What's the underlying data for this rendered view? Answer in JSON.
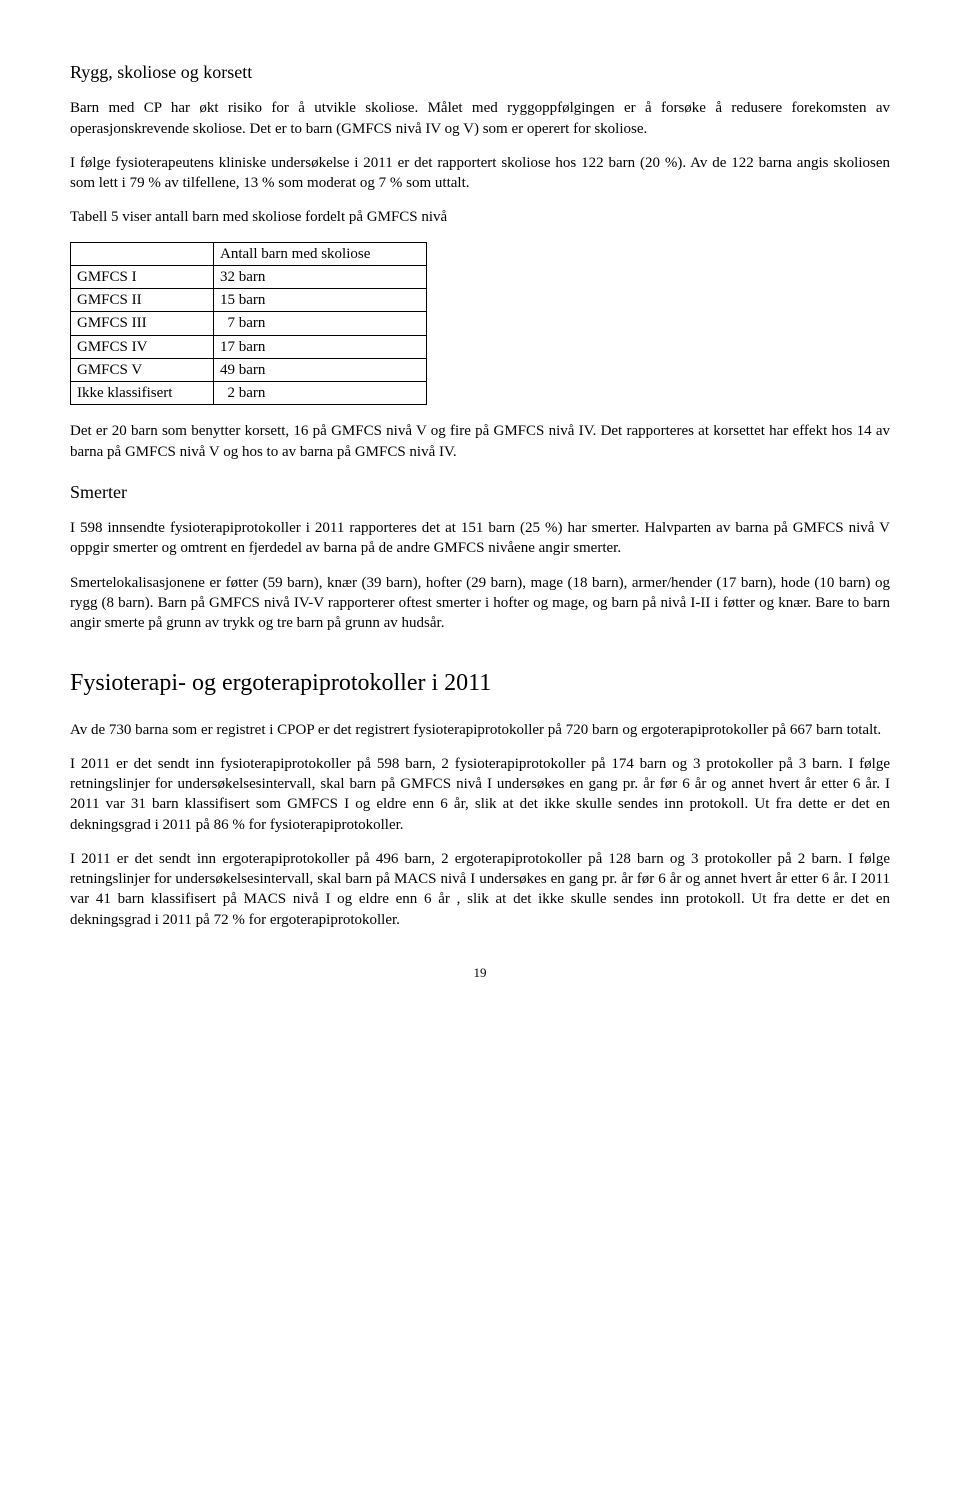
{
  "section1": {
    "heading": "Rygg, skoliose og korsett",
    "para1": "Barn med CP har økt risiko for å utvikle skoliose. Målet med ryggoppfølgingen er å forsøke å redusere forekomsten av operasjonskrevende skoliose. Det er to barn (GMFCS nivå IV og V) som er operert for skoliose.",
    "para2": "I følge fysioterapeutens kliniske undersøkelse i 2011 er det rapportert skoliose hos 122 barn (20 %). Av de 122 barna angis skoliosen som lett i 79 % av tilfellene, 13 % som moderat og 7 % som uttalt.",
    "tableCaption": "Tabell 5 viser antall barn med skoliose fordelt på GMFCS nivå",
    "table": {
      "header": [
        "",
        "Antall barn med skoliose"
      ],
      "rows": [
        [
          "GMFCS I",
          "32 barn"
        ],
        [
          "GMFCS II",
          "15 barn"
        ],
        [
          "GMFCS III",
          "  7 barn"
        ],
        [
          "GMFCS IV",
          "17 barn"
        ],
        [
          "GMFCS V",
          "49 barn"
        ],
        [
          "Ikke klassifisert",
          "  2 barn"
        ]
      ]
    },
    "para3": "Det er 20 barn som benytter korsett, 16 på GMFCS nivå V og fire på GMFCS nivå IV. Det rapporteres at korsettet har effekt hos 14 av barna på GMFCS nivå V og hos to av barna på GMFCS nivå IV."
  },
  "section2": {
    "heading": "Smerter",
    "para1": "I 598 innsendte fysioterapiprotokoller i 2011 rapporteres det at 151 barn (25 %) har smerter. Halvparten av barna på GMFCS nivå V oppgir smerter og omtrent en fjerdedel av barna på de andre GMFCS nivåene angir smerter.",
    "para2": "Smertelokalisasjonene er føtter (59 barn), knær (39 barn), hofter (29 barn), mage (18 barn), armer/hender (17 barn), hode (10 barn) og rygg (8 barn). Barn på GMFCS nivå IV-V rapporterer oftest smerter i hofter og mage, og barn på nivå I-II i føtter og knær. Bare to barn angir smerte på grunn av trykk og tre barn på grunn av hudsår."
  },
  "section3": {
    "heading": "Fysioterapi- og ergoterapiprotokoller i 2011",
    "para1": "Av de 730 barna som er registret i CPOP er det registrert fysioterapiprotokoller på 720 barn og ergoterapiprotokoller på 667 barn totalt.",
    "para2": "I 2011 er det sendt inn fysioterapiprotokoller på 598 barn, 2 fysioterapiprotokoller på 174 barn og 3 protokoller på 3 barn. I følge retningslinjer for undersøkelsesintervall, skal barn på GMFCS nivå I undersøkes en gang pr. år før 6 år og annet hvert år etter 6 år. I 2011 var 31 barn klassifisert som GMFCS I og eldre enn 6 år, slik at det ikke skulle sendes inn protokoll. Ut fra dette er det en dekningsgrad i 2011 på 86 % for fysioterapiprotokoller.",
    "para3": "I 2011 er det sendt inn ergoterapiprotokoller på 496 barn, 2 ergoterapiprotokoller på 128 barn og 3 protokoller på 2 barn. I følge retningslinjer for undersøkelsesintervall, skal barn på MACS nivå I undersøkes en gang pr. år før 6 år og annet hvert år etter 6 år. I 2011 var 41 barn klassifisert på MACS nivå I  og eldre enn 6 år , slik at det ikke skulle sendes inn protokoll. Ut fra dette er det en dekningsgrad i 2011 på 72 % for ergoterapiprotokoller."
  },
  "pageNumber": "19"
}
